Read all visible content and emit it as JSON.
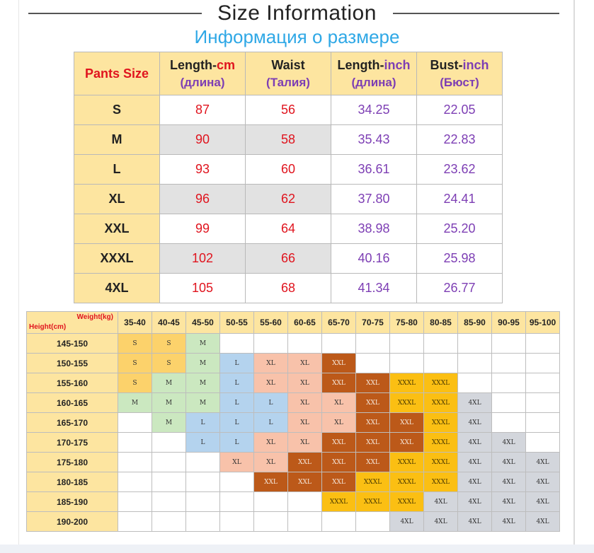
{
  "title": "Size Information",
  "subtitle": "Информация о размере",
  "size_table": {
    "headers": [
      {
        "main": "Pants Size",
        "unit": "",
        "ru": ""
      },
      {
        "main": "Length-",
        "unit": "cm",
        "ru": "(длина)"
      },
      {
        "main": "Waist",
        "unit": "",
        "ru": "(Талия)"
      },
      {
        "main": "Length-",
        "unit": "inch",
        "ru": "(длина)"
      },
      {
        "main": "Bust-",
        "unit": "inch",
        "ru": "(Бюст)"
      }
    ],
    "rows": [
      {
        "size": "S",
        "length_cm": "87",
        "waist": "56",
        "length_inch": "34.25",
        "bust_inch": "22.05"
      },
      {
        "size": "M",
        "length_cm": "90",
        "waist": "58",
        "length_inch": "35.43",
        "bust_inch": "22.83"
      },
      {
        "size": "L",
        "length_cm": "93",
        "waist": "60",
        "length_inch": "36.61",
        "bust_inch": "23.62"
      },
      {
        "size": "XL",
        "length_cm": "96",
        "waist": "62",
        "length_inch": "37.80",
        "bust_inch": "24.41"
      },
      {
        "size": "XXL",
        "length_cm": "99",
        "waist": "64",
        "length_inch": "38.98",
        "bust_inch": "25.20"
      },
      {
        "size": "XXXL",
        "length_cm": "102",
        "waist": "66",
        "length_inch": "40.16",
        "bust_inch": "25.98"
      },
      {
        "size": "4XL",
        "length_cm": "105",
        "waist": "68",
        "length_inch": "41.34",
        "bust_inch": "26.77"
      }
    ]
  },
  "grid": {
    "corner_weight": "Weight(kg)",
    "corner_height": "Height(cm)",
    "weights": [
      "35-40",
      "40-45",
      "45-50",
      "50-55",
      "55-60",
      "60-65",
      "65-70",
      "70-75",
      "75-80",
      "80-85",
      "85-90",
      "90-95",
      "95-100"
    ],
    "rows": [
      {
        "height": "145-150",
        "cells": [
          "S",
          "S",
          "M",
          "",
          "",
          "",
          "",
          "",
          "",
          "",
          "",
          "",
          ""
        ]
      },
      {
        "height": "150-155",
        "cells": [
          "S",
          "S",
          "M",
          "L",
          "XL",
          "XL",
          "XXL",
          "",
          "",
          "",
          "",
          "",
          ""
        ]
      },
      {
        "height": "155-160",
        "cells": [
          "S",
          "M",
          "M",
          "L",
          "XL",
          "XL",
          "XXL",
          "XXL",
          "XXXL",
          "XXXL",
          "",
          "",
          ""
        ]
      },
      {
        "height": "160-165",
        "cells": [
          "M",
          "M",
          "M",
          "L",
          "L",
          "XL",
          "XL",
          "XXL",
          "XXXL",
          "XXXL",
          "4XL",
          "",
          ""
        ]
      },
      {
        "height": "165-170",
        "cells": [
          "",
          "M",
          "L",
          "L",
          "L",
          "XL",
          "XL",
          "XXL",
          "XXL",
          "XXXL",
          "4XL",
          "",
          ""
        ]
      },
      {
        "height": "170-175",
        "cells": [
          "",
          "",
          "L",
          "L",
          "XL",
          "XL",
          "XXL",
          "XXL",
          "XXL",
          "XXXL",
          "4XL",
          "4XL",
          ""
        ]
      },
      {
        "height": "175-180",
        "cells": [
          "",
          "",
          "",
          "XL",
          "XL",
          "XXL",
          "XXL",
          "XXL",
          "XXXL",
          "XXXL",
          "4XL",
          "4XL",
          "4XL"
        ]
      },
      {
        "height": "180-185",
        "cells": [
          "",
          "",
          "",
          "",
          "XXL",
          "XXL",
          "XXL",
          "XXXL",
          "XXXL",
          "XXXL",
          "4XL",
          "4XL",
          "4XL"
        ]
      },
      {
        "height": "185-190",
        "cells": [
          "",
          "",
          "",
          "",
          "",
          "",
          "XXXL",
          "XXXL",
          "XXXL",
          "4XL",
          "4XL",
          "4XL",
          "4XL"
        ]
      },
      {
        "height": "190-200",
        "cells": [
          "",
          "",
          "",
          "",
          "",
          "",
          "",
          "",
          "4XL",
          "4XL",
          "4XL",
          "4XL",
          "4XL"
        ]
      }
    ]
  },
  "colors": {
    "header_bg": "#fde5a0",
    "accent_red": "#e0141e",
    "accent_purple": "#7d3eb4",
    "subtitle_blue": "#2fa8e6",
    "S": "#fcd26b",
    "M": "#cbe8c0",
    "L": "#b4d3ee",
    "XL": "#f8c2aa",
    "XXL": "#bc5919",
    "XXXL": "#fbbf13",
    "4XL": "#d3d6dc"
  }
}
